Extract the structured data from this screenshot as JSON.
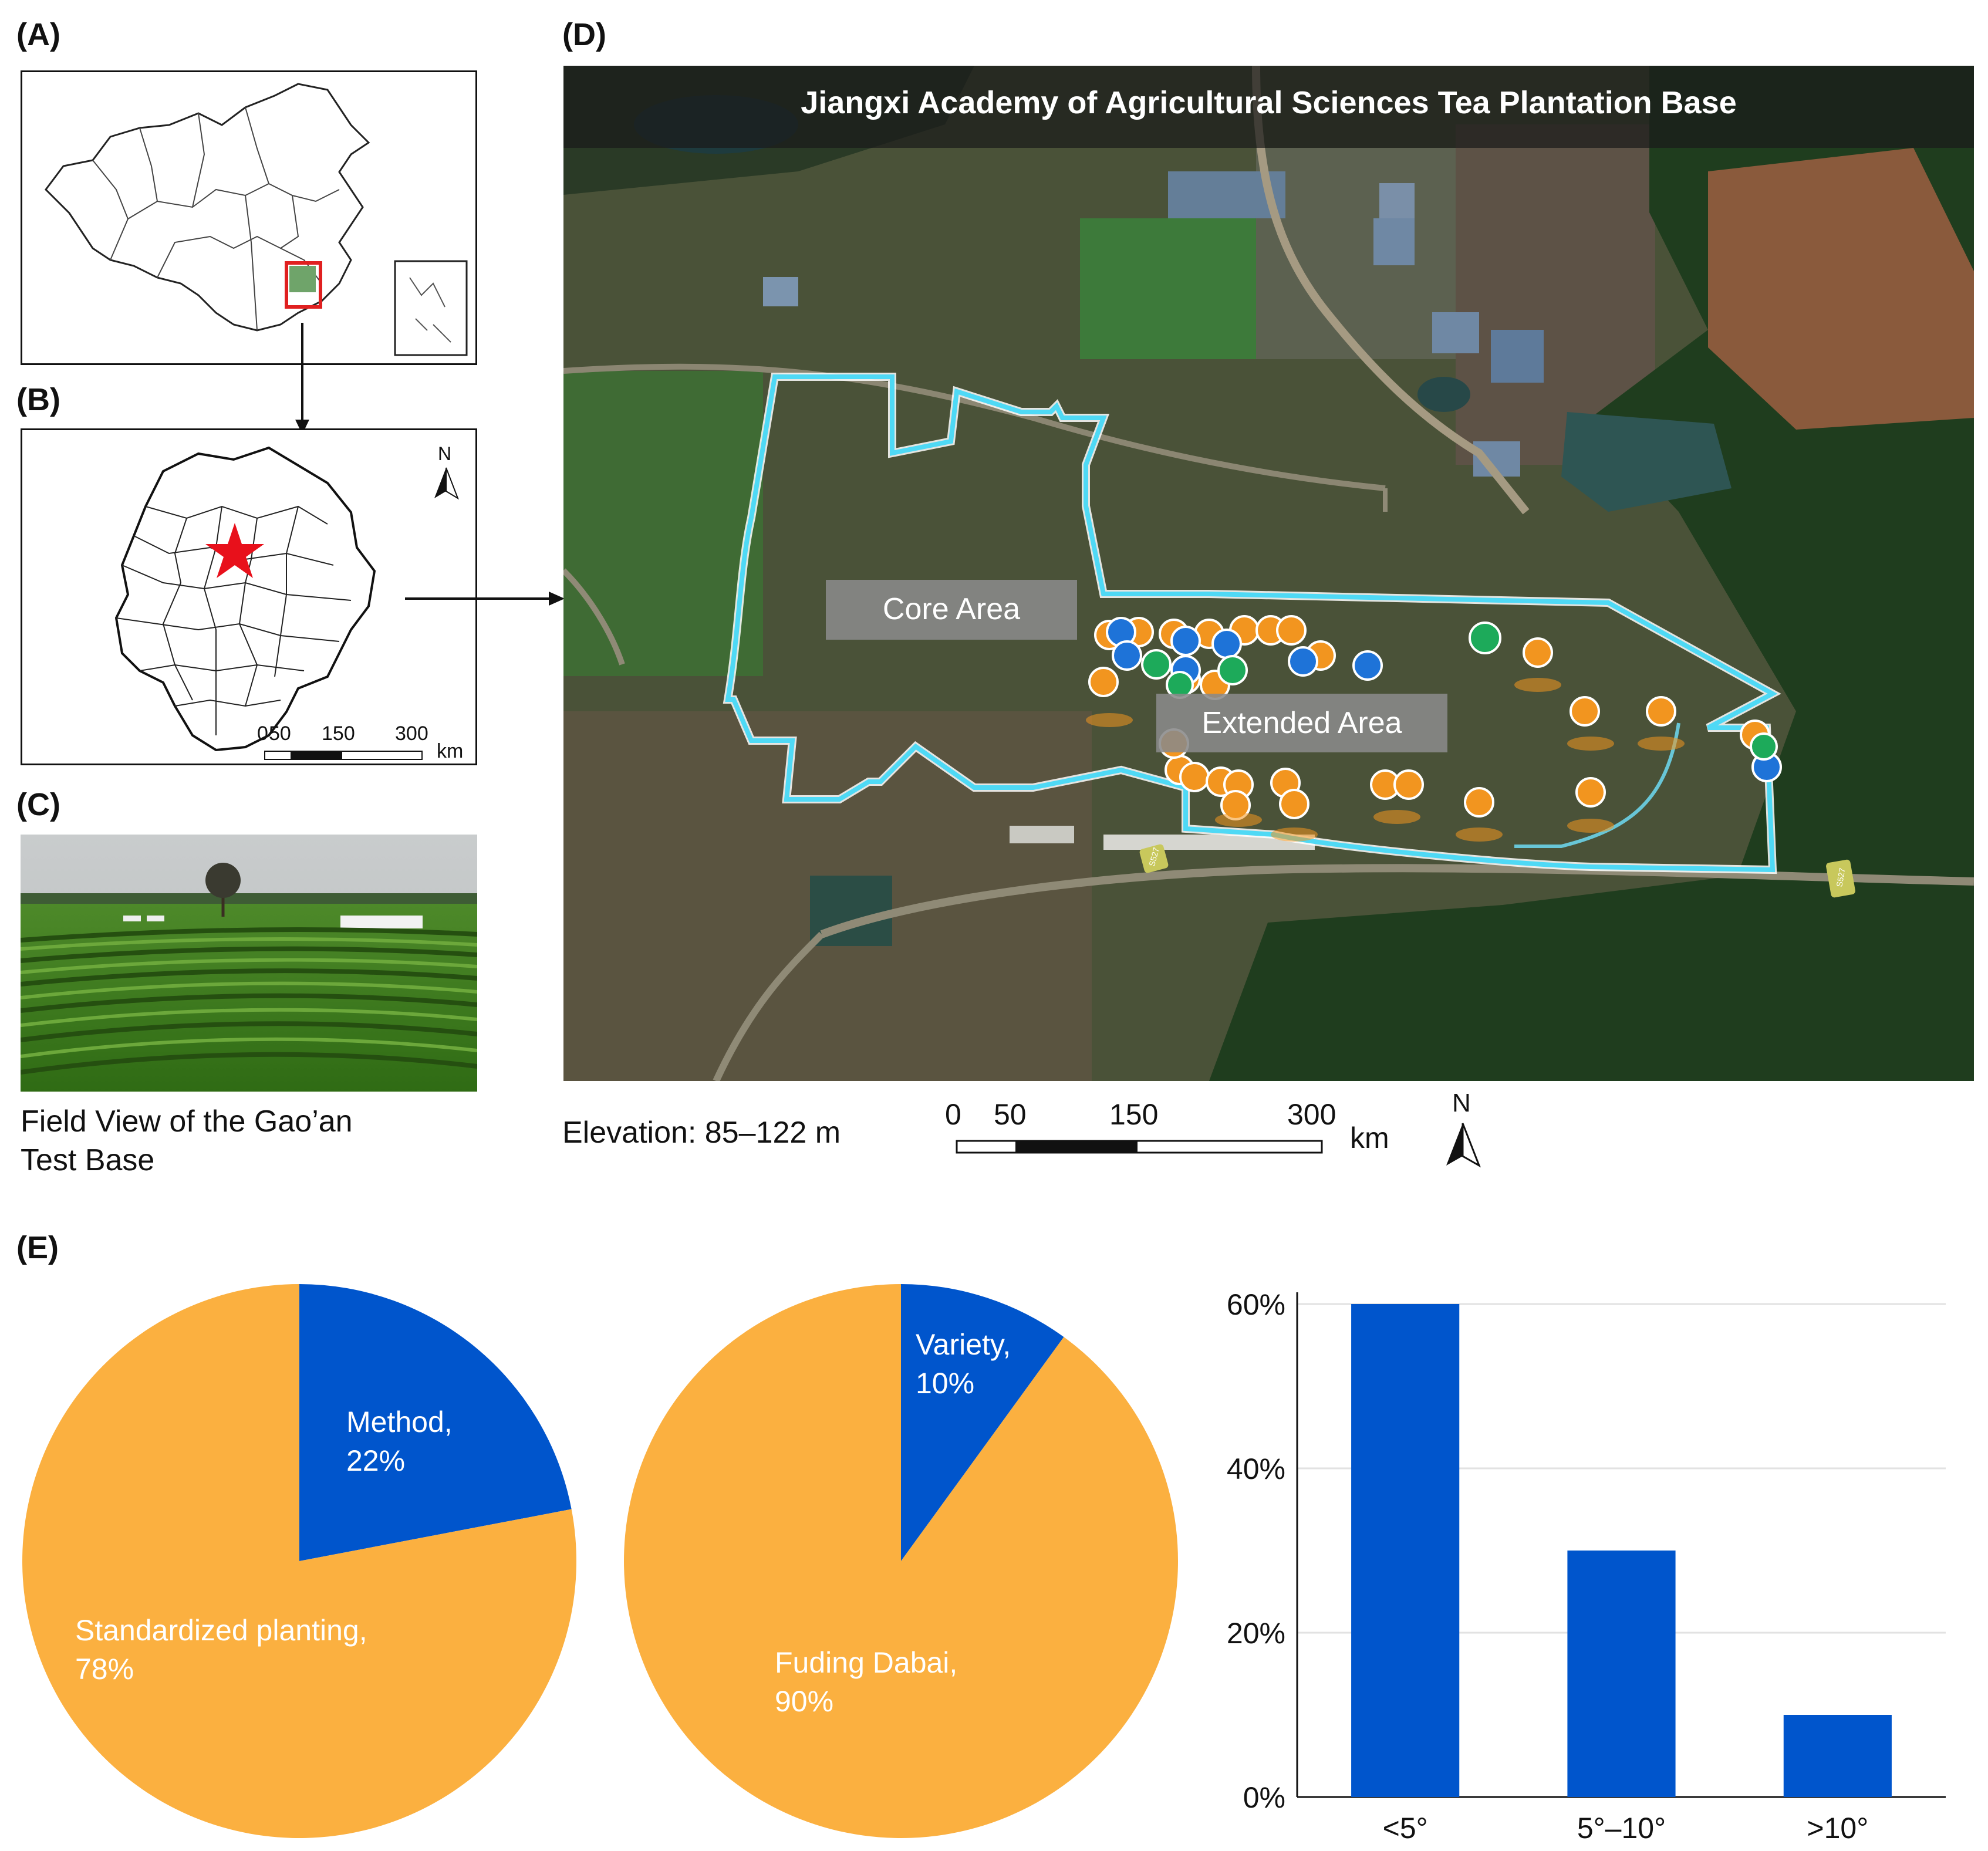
{
  "panels": {
    "a": "(A)",
    "b": "(B)",
    "c": "(C)",
    "d": "(D)",
    "e": "(E)"
  },
  "panel_b": {
    "north": "N",
    "scale_ticks": [
      "0",
      "50",
      "150",
      "300"
    ],
    "scale_unit": "km"
  },
  "panel_c": {
    "caption_line1": "Field View of the Gao’an",
    "caption_line2": "Test Base"
  },
  "panel_d": {
    "title": "Jiangxi Academy of Agricultural Sciences Tea Plantation Base",
    "core_label": "Core Area",
    "extended_label": "Extended Area",
    "elevation": "Elevation: 85–122 m",
    "scale_ticks": [
      "0",
      "50",
      "150",
      "300"
    ],
    "scale_unit": "km",
    "north": "N",
    "road_sign": "S527"
  },
  "colors": {
    "orange": "#FBB040",
    "blue": "#0055CC",
    "cyan_outline": "#7FE9FF",
    "marker_orange": "#F2951F",
    "marker_blue": "#1E73D8",
    "marker_green": "#1DAA5A"
  },
  "chart_data": [
    {
      "type": "pie",
      "slices": [
        {
          "label": "Method,",
          "pct": "22%",
          "value": 22,
          "color": "#0055CC"
        },
        {
          "label": "Standardized planting,",
          "pct": "78%",
          "value": 78,
          "color": "#FBB040"
        }
      ]
    },
    {
      "type": "pie",
      "slices": [
        {
          "label": "Variety,",
          "pct": "10%",
          "value": 10,
          "color": "#0055CC"
        },
        {
          "label": "Fuding Dabai,",
          "pct": "90%",
          "value": 90,
          "color": "#FBB040"
        }
      ]
    },
    {
      "type": "bar",
      "categories": [
        "<5°",
        "5°–10°",
        ">10°"
      ],
      "values": [
        60,
        30,
        10
      ],
      "ylim": [
        0,
        60
      ],
      "yticks": [
        "0%",
        "20%",
        "40%",
        "60%"
      ],
      "grid": true
    }
  ]
}
